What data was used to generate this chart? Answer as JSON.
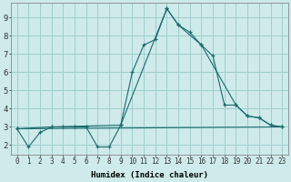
{
  "xlabel": "Humidex (Indice chaleur)",
  "bg_color": "#ceeaea",
  "grid_color": "#9fcece",
  "line_color": "#1a6b6b",
  "xlim": [
    -0.5,
    23.5
  ],
  "ylim": [
    1.5,
    9.8
  ],
  "xticks": [
    0,
    1,
    2,
    3,
    4,
    5,
    6,
    7,
    8,
    9,
    10,
    11,
    12,
    13,
    14,
    15,
    16,
    17,
    18,
    19,
    20,
    21,
    22,
    23
  ],
  "yticks": [
    2,
    3,
    4,
    5,
    6,
    7,
    8,
    9
  ],
  "line1_x": [
    0,
    1,
    2,
    3,
    4,
    5,
    6,
    7,
    8,
    9,
    10,
    11,
    12,
    13,
    14,
    15,
    16,
    17,
    18,
    19,
    20,
    21,
    22,
    23
  ],
  "line1_y": [
    2.9,
    1.9,
    2.7,
    3.0,
    3.0,
    3.0,
    3.0,
    1.9,
    1.9,
    3.1,
    6.0,
    7.5,
    7.8,
    9.5,
    8.6,
    8.2,
    7.5,
    6.9,
    4.2,
    4.2,
    3.6,
    3.5,
    3.1,
    3.0
  ],
  "line2_x": [
    0,
    3,
    9,
    13,
    14,
    16,
    19,
    20,
    21,
    22,
    23
  ],
  "line2_y": [
    2.9,
    3.0,
    3.1,
    9.5,
    8.6,
    7.5,
    4.2,
    3.6,
    3.5,
    3.1,
    3.0
  ],
  "line3_x": [
    0,
    23
  ],
  "line3_y": [
    2.9,
    3.0
  ],
  "xlabel_fontsize": 6.5,
  "tick_fontsize": 5.5,
  "ytick_fontsize": 6.5
}
